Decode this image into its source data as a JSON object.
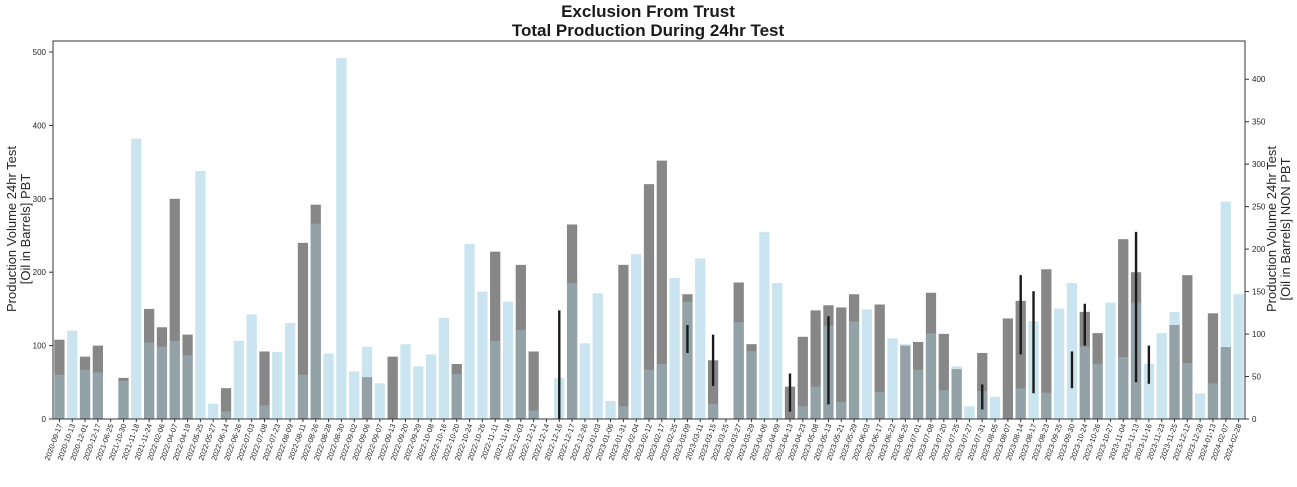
{
  "chart_data": {
    "type": "bar",
    "title": "Exclusion From Trust",
    "subtitle": "Total Production During 24hr Test",
    "ylabel_left": [
      "Production Volume 24hr Test",
      "[Oil in Barrels] PBT"
    ],
    "ylabel_right": [
      "Production Volume 24hr Test",
      "[Oil in Barrels] NON PBT"
    ],
    "ylim_left": [
      0,
      515
    ],
    "ylim_right": [
      0,
      445
    ],
    "yticks_left": [
      0,
      100,
      200,
      300,
      400,
      500
    ],
    "yticks_right": [
      0,
      50,
      100,
      150,
      200,
      250,
      300,
      350,
      400
    ],
    "grid": false,
    "colors": {
      "pbt": "#7a7a7a",
      "non_pbt": "#add8e6",
      "error_bar": "#1a1a1a"
    },
    "categories": [
      "2020-09-17",
      "2020-10-13",
      "2020-12-01",
      "2020-12-17",
      "2021-06-25",
      "2021-10-30",
      "2021-11-18",
      "2021-11-24",
      "2022-02-06",
      "2022-04-07",
      "2022-04-19",
      "2022-05-25",
      "2022-05-27",
      "2022-06-14",
      "2022-06-26",
      "2022-07-03",
      "2022-07-08",
      "2022-07-23",
      "2022-08-09",
      "2022-08-11",
      "2022-08-26",
      "2022-08-28",
      "2022-08-30",
      "2022-09-02",
      "2022-09-06",
      "2022-09-07",
      "2022-09-13",
      "2022-09-20",
      "2022-09-29",
      "2022-10-08",
      "2022-10-16",
      "2022-10-20",
      "2022-10-24",
      "2022-10-26",
      "2022-11-11",
      "2022-11-18",
      "2022-12-03",
      "2022-12-12",
      "2022-12-14",
      "2022-12-16",
      "2022-12-17",
      "2022-12-26",
      "2023-01-03",
      "2023-01-06",
      "2023-01-31",
      "2023-02-04",
      "2023-02-12",
      "2023-02-17",
      "2023-02-25",
      "2023-03-09",
      "2023-03-11",
      "2023-03-15",
      "2023-03-25",
      "2023-03-27",
      "2023-03-29",
      "2023-04-06",
      "2023-04-09",
      "2023-04-13",
      "2023-04-23",
      "2023-05-08",
      "2023-05-13",
      "2023-05-21",
      "2023-05-29",
      "2023-06-03",
      "2023-06-17",
      "2023-06-22",
      "2023-06-25",
      "2023-07-01",
      "2023-07-08",
      "2023-07-20",
      "2023-07-25",
      "2023-07-27",
      "2023-07-31",
      "2023-08-05",
      "2023-08-07",
      "2023-08-14",
      "2023-08-17",
      "2023-08-23",
      "2023-09-25",
      "2023-09-30",
      "2023-10-24",
      "2023-10-26",
      "2023-10-27",
      "2023-11-04",
      "2023-11-13",
      "2023-11-16",
      "2023-11-23",
      "2023-11-25",
      "2023-12-12",
      "2023-12-28",
      "2024-01-13",
      "2024-02-07",
      "2024-02-28"
    ],
    "series": [
      {
        "axis": "left",
        "values": [
          108,
          0,
          85,
          100,
          0,
          56,
          0,
          150,
          125,
          300,
          115,
          0,
          0,
          42,
          0,
          0,
          92,
          0,
          0,
          240,
          292,
          0,
          0,
          0,
          57,
          0,
          85,
          0,
          0,
          0,
          0,
          75,
          0,
          0,
          228,
          0,
          210,
          92,
          0,
          0,
          265,
          0,
          0,
          0,
          210,
          0,
          320,
          352,
          0,
          170,
          0,
          80,
          0,
          186,
          102,
          0,
          0,
          44,
          112,
          148,
          155,
          152,
          170,
          0,
          156,
          0,
          100,
          105,
          172,
          116,
          68,
          0,
          90,
          0,
          137,
          161,
          0,
          204,
          0,
          0,
          146,
          117,
          0,
          245,
          200,
          0,
          0,
          128,
          196,
          0,
          144,
          98,
          0
        ],
        "error_bars": {
          "22": [
            0,
            0
          ],
          "39": [
            0,
            148
          ],
          "46": [
            60,
            0
          ],
          "49": [
            90,
            128
          ],
          "51": [
            45,
            115
          ],
          "60": [
            20,
            140
          ],
          "57": [
            10,
            62
          ],
          "72": [
            13,
            47
          ],
          "75": [
            88,
            196
          ],
          "76": [
            35,
            174
          ],
          "79": [
            42,
            92
          ],
          "80": [
            100,
            157
          ],
          "84": [
            50,
            255
          ],
          "85": [
            48,
            100
          ]
        }
      },
      {
        "axis": "right",
        "values": [
          52,
          104,
          58,
          55,
          0,
          45,
          330,
          90,
          85,
          92,
          75,
          292,
          18,
          9,
          92,
          123,
          16,
          79,
          113,
          52,
          230,
          77,
          425,
          56,
          85,
          42,
          0,
          88,
          62,
          76,
          119,
          53,
          206,
          150,
          92,
          138,
          105,
          10,
          0,
          48,
          160,
          89,
          148,
          21,
          15,
          194,
          58,
          65,
          166,
          138,
          189,
          18,
          0,
          114,
          80,
          220,
          160,
          0,
          15,
          38,
          110,
          20,
          115,
          129,
          32,
          95,
          88,
          58,
          101,
          34,
          62,
          15,
          33,
          26,
          0,
          36,
          115,
          31,
          130,
          160,
          85,
          65,
          137,
          73,
          137,
          65,
          101,
          126,
          66,
          30,
          42,
          256,
          147
        ]
      }
    ]
  }
}
